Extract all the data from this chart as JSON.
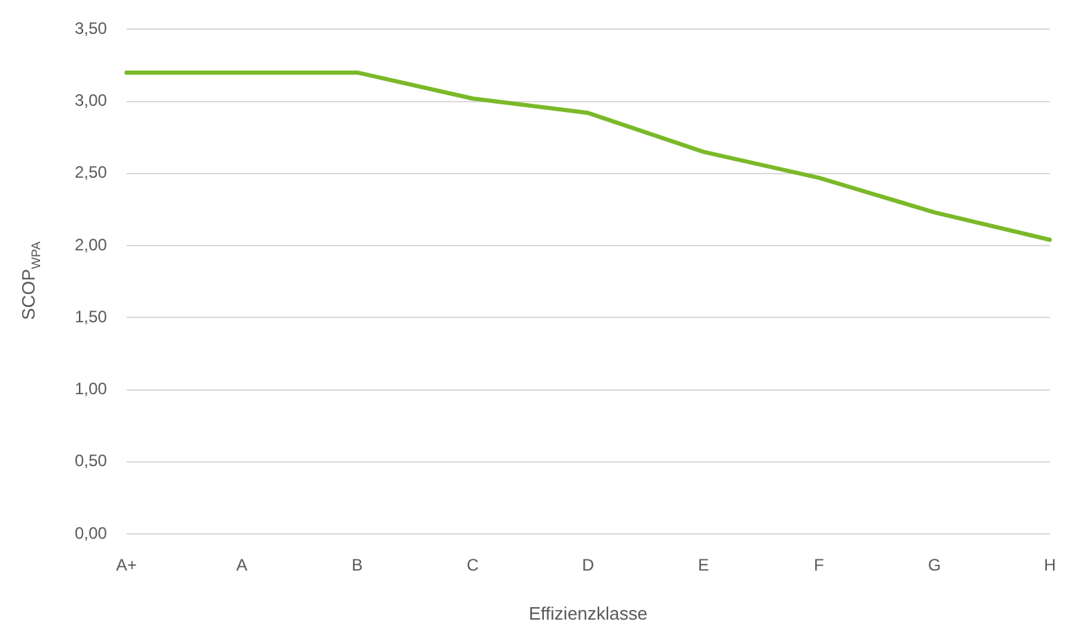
{
  "chart_data": {
    "type": "line",
    "xlabel": "Effizienzklasse",
    "ylabel": "SCOP$_{WPA}$",
    "categories": [
      "A+",
      "A",
      "B",
      "C",
      "D",
      "E",
      "F",
      "G",
      "H"
    ],
    "series": [
      {
        "color": "#7ab929",
        "values": [
          3.2,
          3.2,
          3.2,
          3.02,
          2.92,
          2.65,
          2.47,
          2.23,
          2.04
        ]
      }
    ],
    "ylim": [
      0,
      3.5
    ],
    "yticks": [
      {
        "value": 0,
        "label": "0,00"
      },
      {
        "value": 0.5,
        "label": "0,50"
      },
      {
        "value": 1,
        "label": "1,00"
      },
      {
        "value": 1.5,
        "label": "1,50"
      },
      {
        "value": 2,
        "label": "2,00"
      },
      {
        "value": 2.5,
        "label": "2,50"
      },
      {
        "value": 3,
        "label": "3,00"
      },
      {
        "value": 3.5,
        "label": "3,50"
      }
    ],
    "grid": "y",
    "legend": false,
    "marker": "none",
    "line_style": "solid"
  }
}
